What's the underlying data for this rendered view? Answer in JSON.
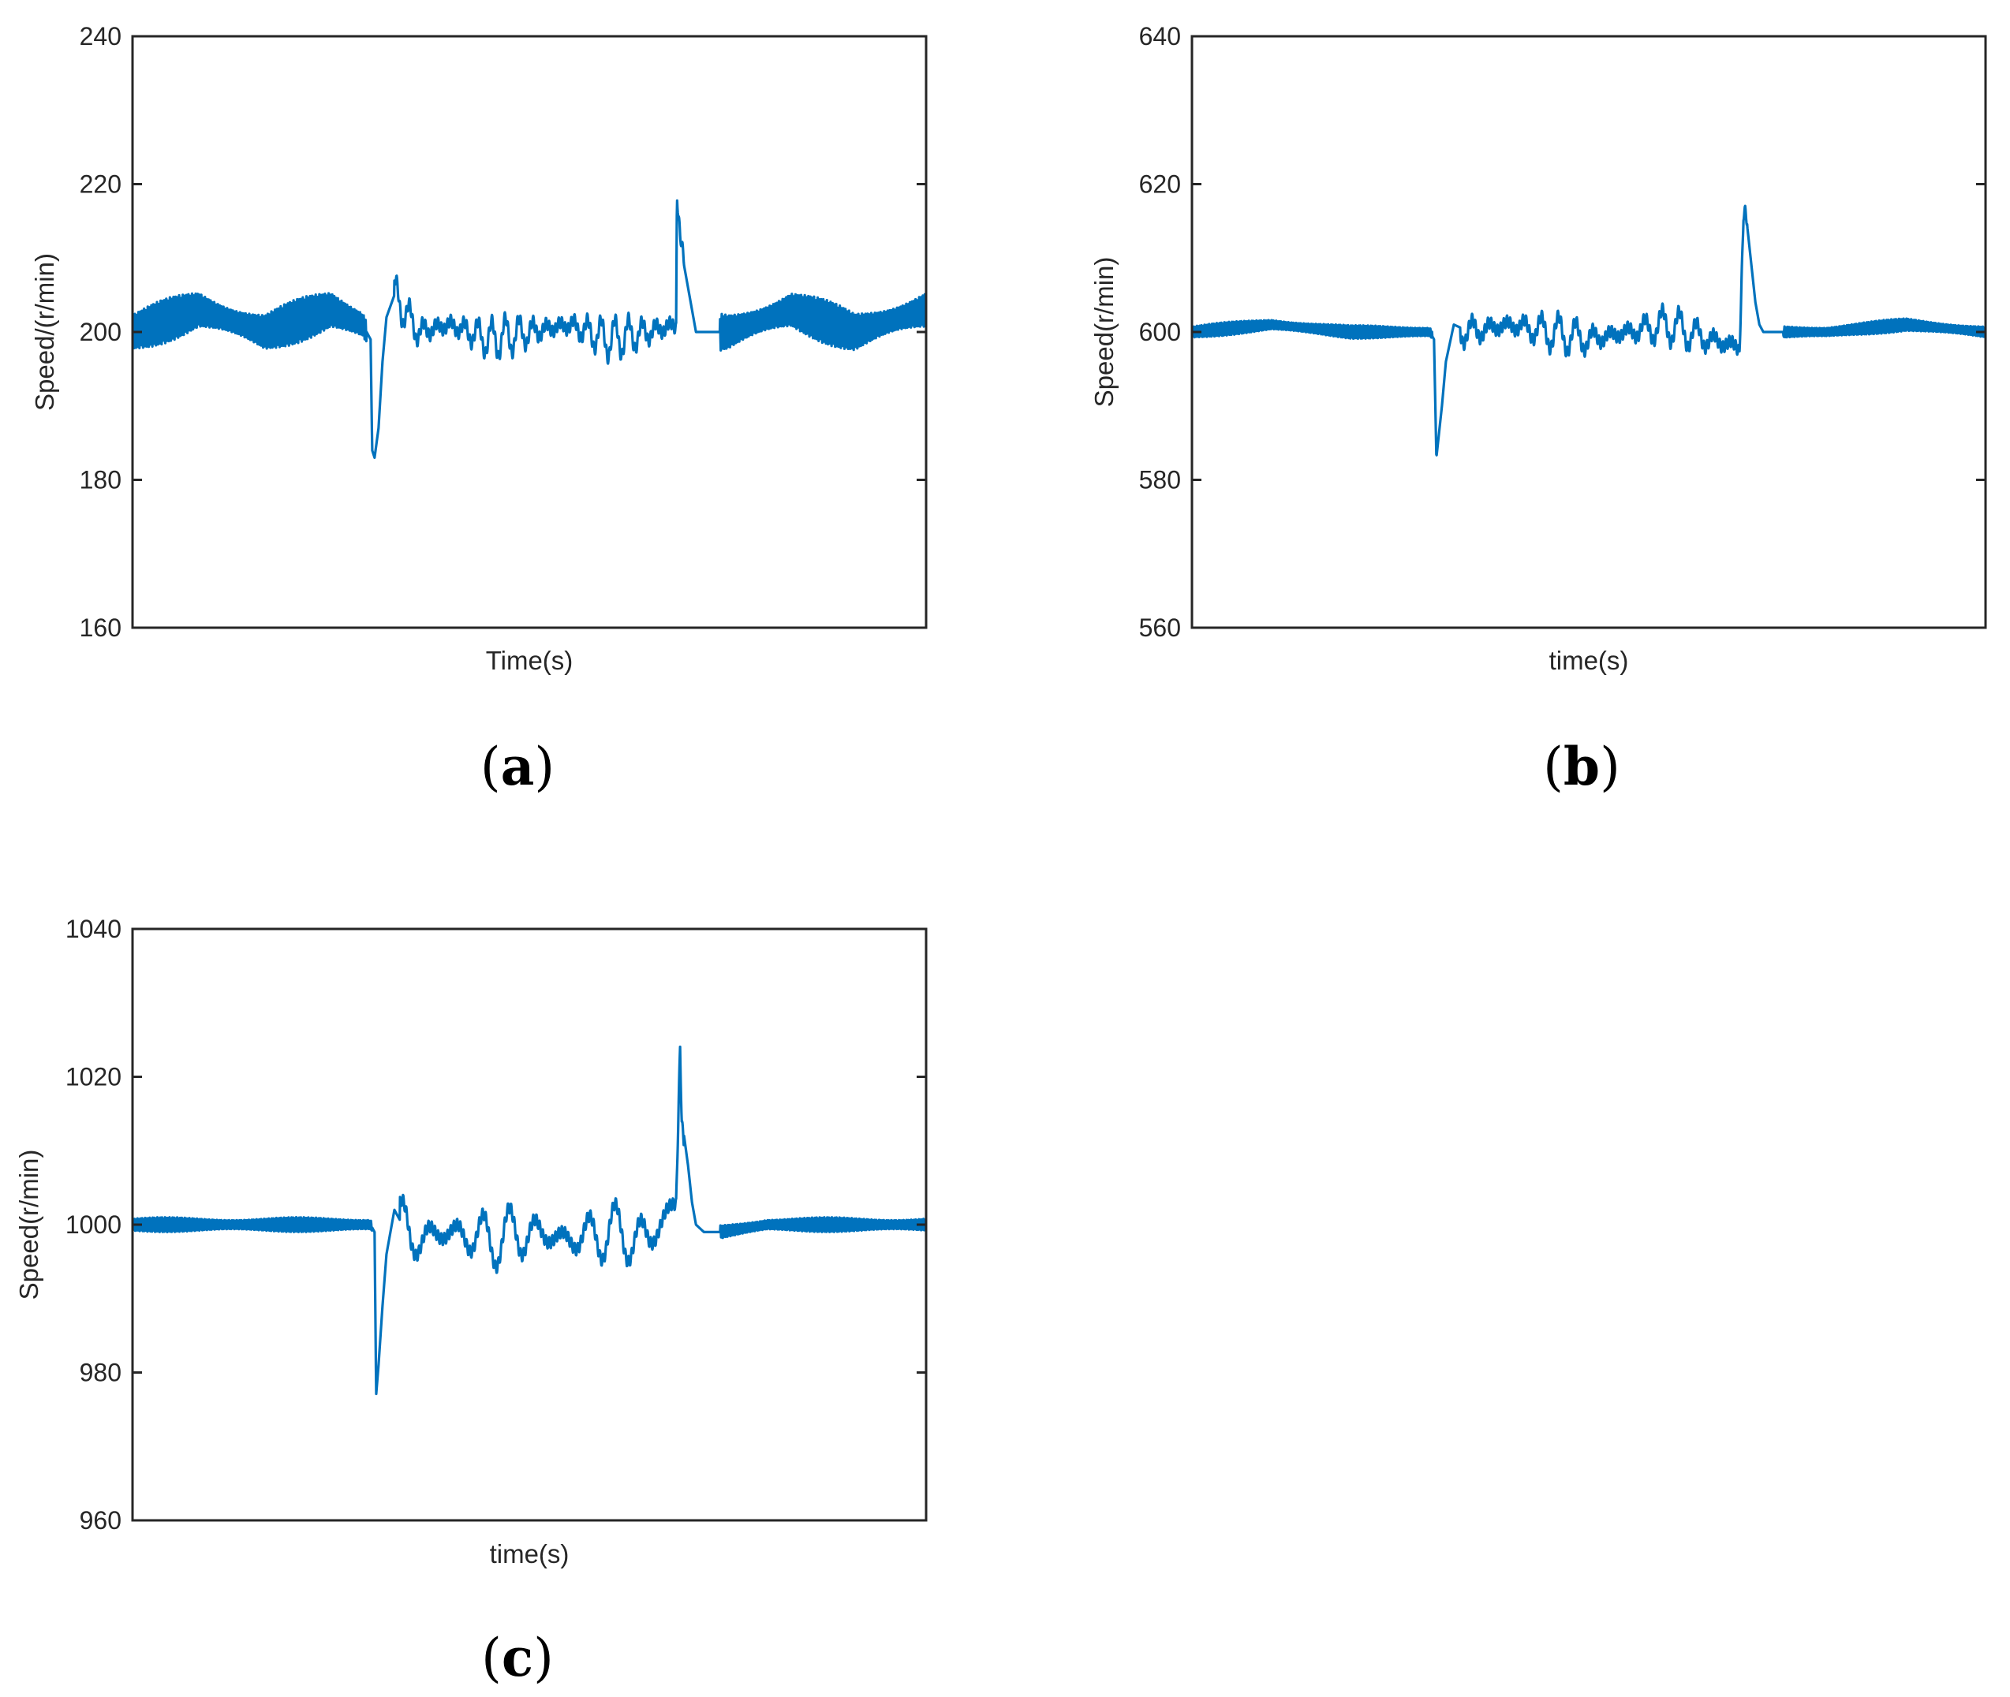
{
  "chart_data": [
    {
      "type": "line",
      "panel_label": "a",
      "ylabel": "Speed/(r/min)",
      "xlabel": "Time(s)",
      "ylim": [
        160,
        240
      ],
      "yticks": [
        160,
        180,
        200,
        220,
        240
      ],
      "xlim": [
        0,
        1
      ],
      "grid": false,
      "color": "#0072BD",
      "base": 200,
      "series": [
        {
          "x": [
            0,
            0.0833,
            0.1667,
            0.25,
            0.29,
            0.3,
            0.302,
            0.305,
            0.31,
            0.315,
            0.32,
            0.33,
            0.36,
            0.4,
            0.45,
            0.5,
            0.55,
            0.6,
            0.65,
            0.685,
            0.686,
            0.688,
            0.69,
            0.695,
            0.7,
            0.705,
            0.71,
            0.72,
            0.75,
            0.83,
            0.91,
            1.0
          ],
          "y": [
            200,
            203,
            200,
            203,
            201,
            199,
            184,
            183,
            187,
            196,
            202,
            205,
            200,
            201,
            199,
            200,
            201,
            199,
            200,
            201,
            219,
            216,
            213,
            209,
            206,
            203,
            200,
            200,
            200,
            203,
            200,
            203
          ]
        }
      ]
    },
    {
      "type": "line",
      "panel_label": "b",
      "ylabel": "Speed(r/min)",
      "xlabel": "time(s)",
      "ylim": [
        560,
        640
      ],
      "yticks": [
        560,
        580,
        600,
        620,
        640
      ],
      "xlim": [
        0,
        1
      ],
      "grid": false,
      "color": "#0072BD",
      "base": 600,
      "series": [
        {
          "x": [
            0,
            0.1,
            0.2,
            0.3,
            0.305,
            0.308,
            0.31,
            0.315,
            0.32,
            0.33,
            0.35,
            0.4,
            0.45,
            0.5,
            0.55,
            0.6,
            0.65,
            0.69,
            0.695,
            0.697,
            0.7,
            0.705,
            0.71,
            0.715,
            0.72,
            0.74,
            0.8,
            0.9,
            1.0
          ],
          "y": [
            600,
            601,
            600,
            600,
            599,
            583,
            585,
            590,
            596,
            601,
            600,
            601,
            600,
            599,
            600,
            601,
            599,
            598,
            616,
            616,
            614,
            609,
            604,
            601,
            600,
            600,
            600,
            601,
            600
          ]
        }
      ]
    },
    {
      "type": "line",
      "panel_label": "c",
      "ylabel": "Speed(r/min)",
      "xlabel": "time(s)",
      "ylim": [
        960,
        1040
      ],
      "yticks": [
        960,
        980,
        1000,
        1020,
        1040
      ],
      "xlim": [
        0,
        1
      ],
      "grid": false,
      "color": "#0072BD",
      "base": 1000,
      "series": [
        {
          "x": [
            0,
            0.1,
            0.2,
            0.3,
            0.305,
            0.307,
            0.31,
            0.315,
            0.32,
            0.33,
            0.35,
            0.4,
            0.45,
            0.5,
            0.55,
            0.6,
            0.65,
            0.685,
            0.69,
            0.692,
            0.695,
            0.7,
            0.705,
            0.71,
            0.72,
            0.74,
            0.8,
            0.9,
            1.0
          ],
          "y": [
            1000,
            1000,
            1000,
            1000,
            999,
            977,
            981,
            989,
            996,
            1002,
            998,
            999,
            998,
            999,
            998,
            999,
            998,
            1003,
            1025,
            1015,
            1012,
            1008,
            1003,
            1000,
            999,
            999,
            1000,
            1000,
            1000
          ]
        }
      ]
    }
  ]
}
